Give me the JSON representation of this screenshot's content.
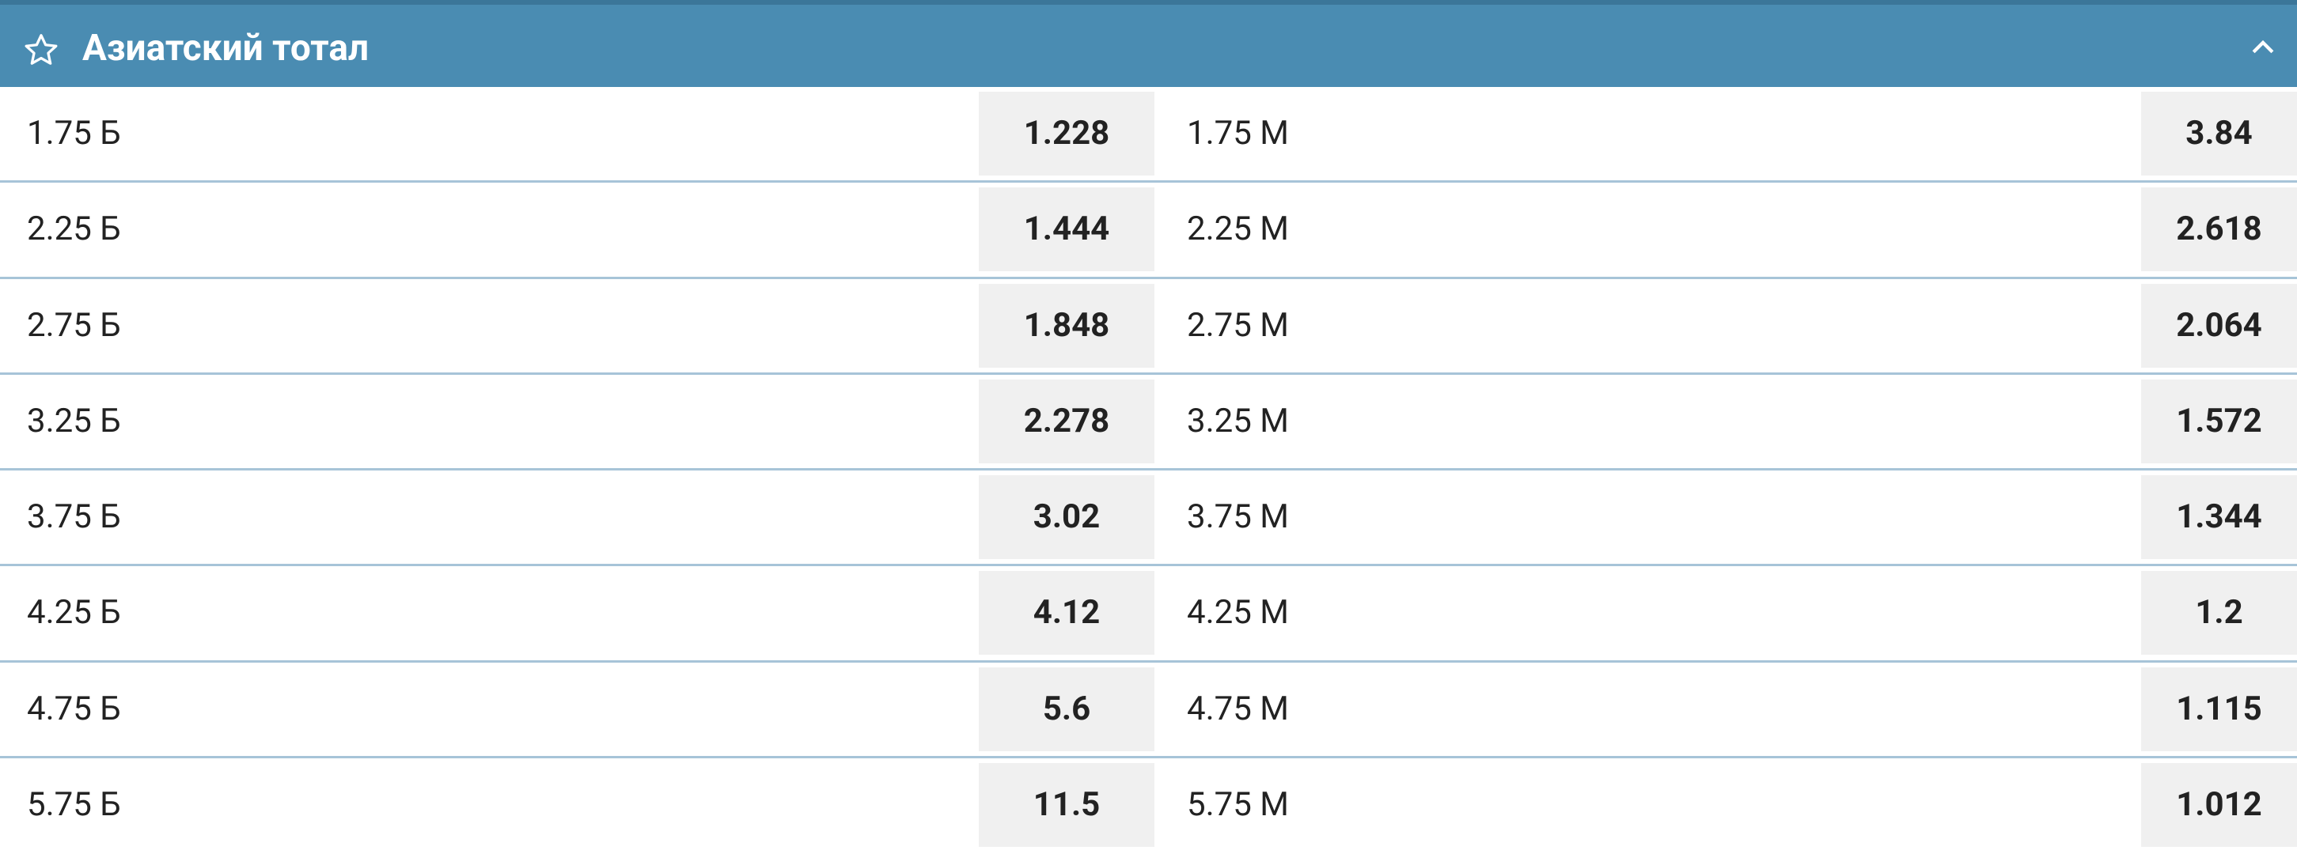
{
  "header": {
    "title": "Азиатский тотал"
  },
  "rows": [
    {
      "over_label": "1.75 Б",
      "over_odds": "1.228",
      "under_label": "1.75 М",
      "under_odds": "3.84"
    },
    {
      "over_label": "2.25 Б",
      "over_odds": "1.444",
      "under_label": "2.25 М",
      "under_odds": "2.618"
    },
    {
      "over_label": "2.75 Б",
      "over_odds": "1.848",
      "under_label": "2.75 М",
      "under_odds": "2.064"
    },
    {
      "over_label": "3.25 Б",
      "over_odds": "2.278",
      "under_label": "3.25 М",
      "under_odds": "1.572"
    },
    {
      "over_label": "3.75 Б",
      "over_odds": "3.02",
      "under_label": "3.75 М",
      "under_odds": "1.344"
    },
    {
      "over_label": "4.25 Б",
      "over_odds": "4.12",
      "under_label": "4.25 М",
      "under_odds": "1.2"
    },
    {
      "over_label": "4.75 Б",
      "over_odds": "5.6",
      "under_label": "4.75 М",
      "under_odds": "1.115"
    },
    {
      "over_label": "5.75 Б",
      "over_odds": "11.5",
      "under_label": "5.75 М",
      "under_odds": "1.012"
    }
  ]
}
